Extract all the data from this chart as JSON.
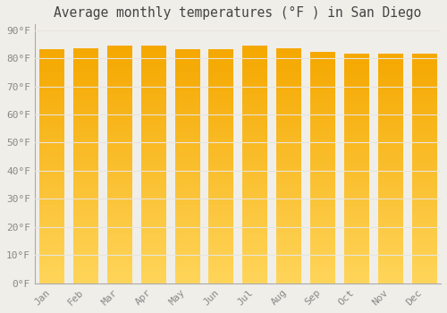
{
  "title": "Average monthly temperatures (°F ) in San Diego",
  "months": [
    "Jan",
    "Feb",
    "Mar",
    "Apr",
    "May",
    "Jun",
    "Jul",
    "Aug",
    "Sep",
    "Oct",
    "Nov",
    "Dec"
  ],
  "values": [
    83,
    83.5,
    84.5,
    84.5,
    83,
    83,
    84.5,
    83.5,
    82,
    81.5,
    81.5,
    81.5
  ],
  "bar_color_center": "#FFD040",
  "bar_color_edge": "#F5A800",
  "background_color": "#F0EEE8",
  "yticks": [
    0,
    10,
    20,
    30,
    40,
    50,
    60,
    70,
    80,
    90
  ],
  "ytick_labels": [
    "0°F",
    "10°F",
    "20°F",
    "30°F",
    "40°F",
    "50°F",
    "60°F",
    "70°F",
    "80°F",
    "90°F"
  ],
  "ylim": [
    0,
    92
  ],
  "title_fontsize": 10.5,
  "tick_fontsize": 8,
  "grid_color": "#E8E4DC",
  "axis_color": "#AAAAAA"
}
